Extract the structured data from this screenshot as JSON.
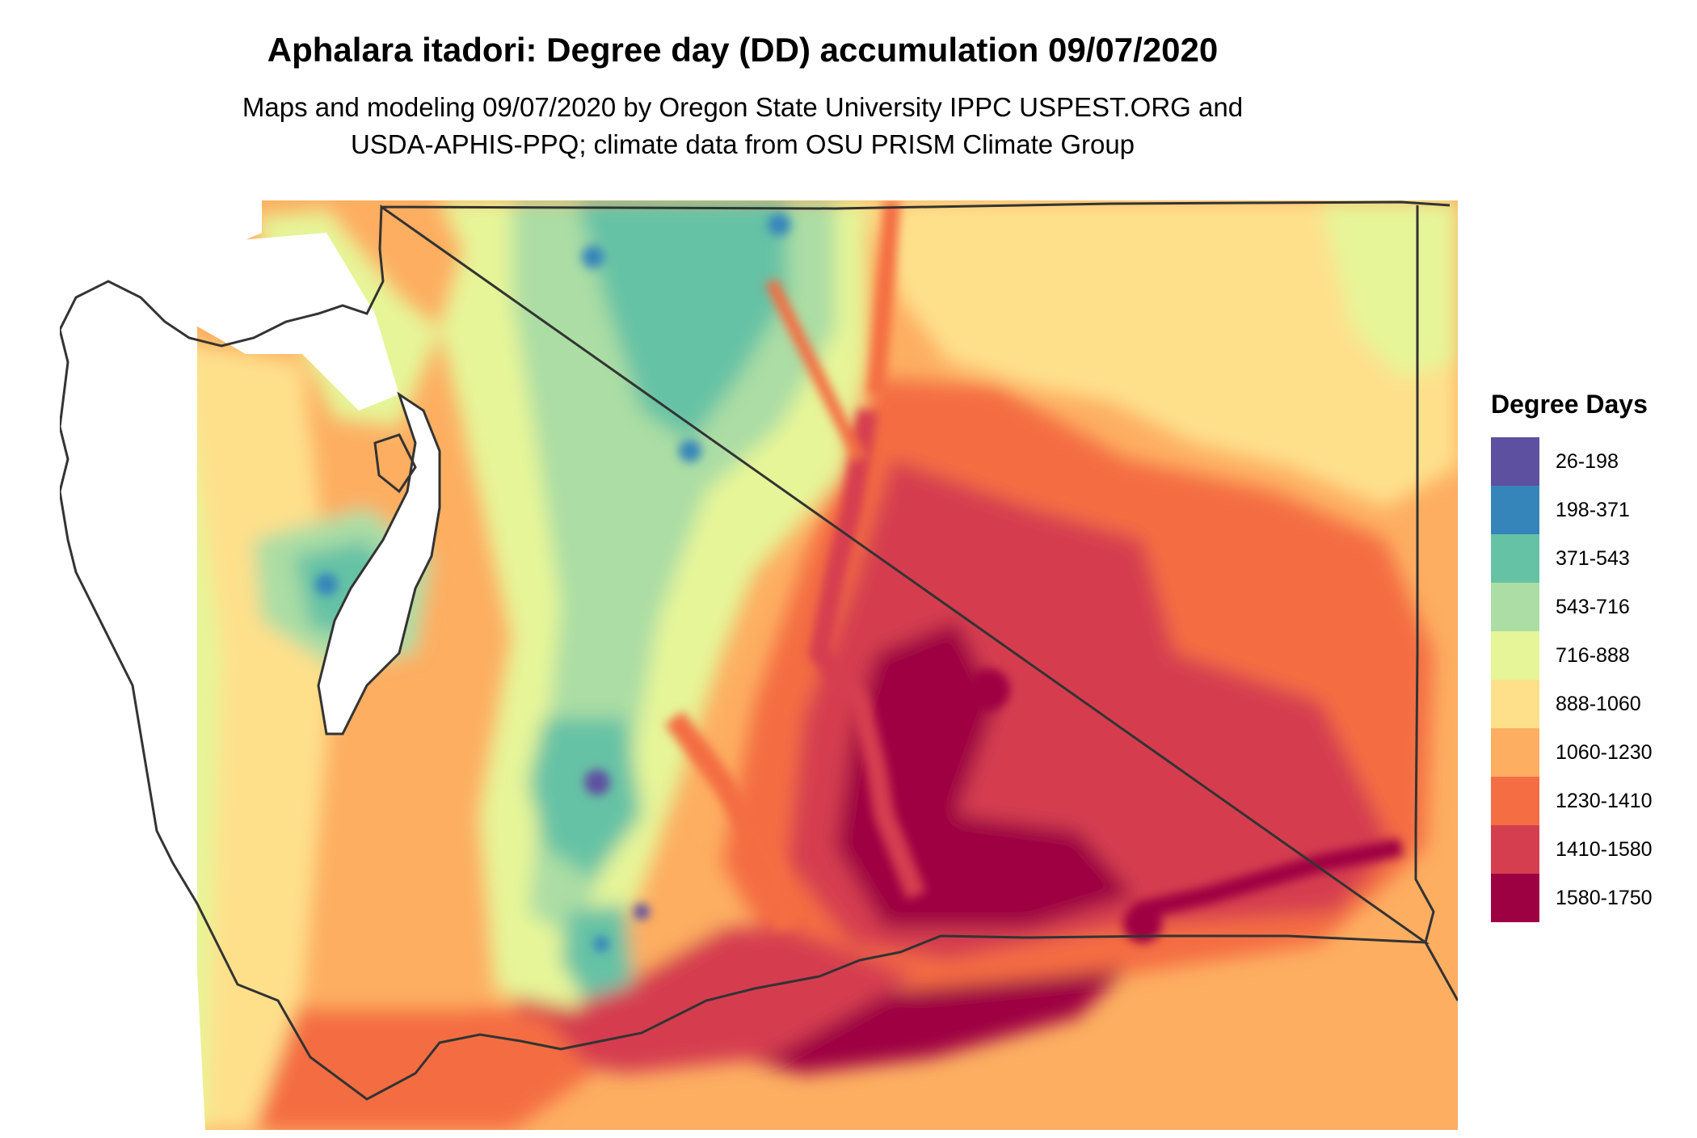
{
  "header": {
    "title": "Aphalara itadori: Degree day (DD) accumulation 09/07/2020",
    "subtitle_line1": "Maps and modeling 09/07/2020 by Oregon State University IPPC USPEST.ORG and",
    "subtitle_line2": "USDA-APHIS-PPQ; climate data from OSU PRISM Climate Group"
  },
  "legend": {
    "title": "Degree Days",
    "items": [
      {
        "label": "26-198",
        "color": "#5e50a1"
      },
      {
        "label": "198-371",
        "color": "#3585bb"
      },
      {
        "label": "371-543",
        "color": "#66c2a5"
      },
      {
        "label": "543-716",
        "color": "#abdda4"
      },
      {
        "label": "716-888",
        "color": "#e6f598"
      },
      {
        "label": "888-1060",
        "color": "#fee08b"
      },
      {
        "label": "1060-1230",
        "color": "#fdae61"
      },
      {
        "label": "1230-1410",
        "color": "#f46d43"
      },
      {
        "label": "1410-1580",
        "color": "#d53e4f"
      },
      {
        "label": "1580-1750",
        "color": "#9e0142"
      }
    ]
  },
  "map": {
    "region": "Washington",
    "border_color": "#333333",
    "water_color": "#ffffff"
  }
}
